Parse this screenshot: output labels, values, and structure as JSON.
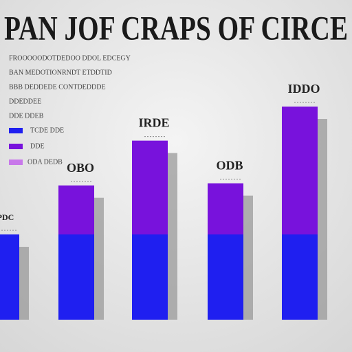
{
  "chart_data": {
    "type": "stacked-bar",
    "title": "PAN JOF CRAPS OF CIRCE",
    "legend_lines": [
      {
        "text": "FROOOOODOTDEDOO DDOL EDCEGY"
      },
      {
        "text": "BAN MEDOTIONRNDT ETDDTID"
      },
      {
        "text": "BBB DEDDEDE CONTDEDDDE",
        "color": "#c03030"
      },
      {
        "text": "DDEDDEE"
      },
      {
        "text": "DDE DDEB",
        "color": "#2a9a3a"
      }
    ],
    "legend_tail": {
      "text": "ODA DEDB",
      "color": "#c878ea"
    },
    "categories": [
      null,
      null,
      null,
      null,
      null
    ],
    "bar_labels": [
      "PDC",
      "OBO",
      "IRDE",
      "ODB",
      "IDDO"
    ],
    "series": [
      {
        "name": "TCDE DDE",
        "color": "#1f1ff0",
        "values": [
          40,
          40,
          40,
          40,
          40
        ]
      },
      {
        "name": "DDE",
        "color": "#7812dc",
        "values": [
          0,
          23,
          44,
          24,
          60
        ]
      }
    ],
    "ylim": [
      0,
      100
    ]
  }
}
